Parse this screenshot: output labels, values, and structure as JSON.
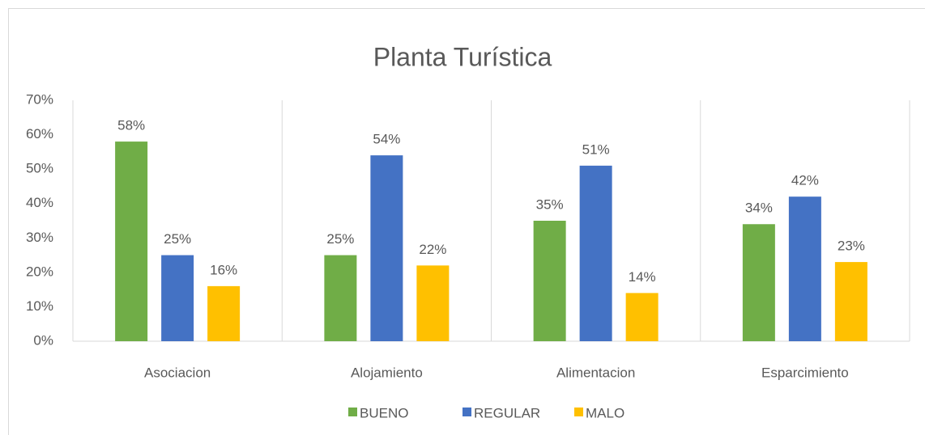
{
  "chart_data": {
    "type": "bar",
    "title": "Planta Turística",
    "categories": [
      "Asociacion",
      "Alojamiento",
      "Alimentacion",
      "Esparcimiento"
    ],
    "series": [
      {
        "name": "BUENO",
        "color": "#70ad47",
        "values": [
          58,
          25,
          35,
          34
        ],
        "value_labels": [
          "58%",
          "25%",
          "35%",
          "34%"
        ]
      },
      {
        "name": "REGULAR",
        "color": "#4472c4",
        "values": [
          25,
          54,
          51,
          42
        ],
        "value_labels": [
          "25%",
          "54%",
          "51%",
          "42%"
        ]
      },
      {
        "name": "MALO",
        "color": "#ffc000",
        "values": [
          16,
          22,
          14,
          23
        ],
        "value_labels": [
          "16%",
          "22%",
          "14%",
          "23%"
        ]
      }
    ],
    "ylim": [
      0,
      70
    ],
    "yticks": [
      {
        "value": 0,
        "label": "0%"
      },
      {
        "value": 10,
        "label": "10%"
      },
      {
        "value": 20,
        "label": "20%"
      },
      {
        "value": 30,
        "label": "30%"
      },
      {
        "value": 40,
        "label": "40%"
      },
      {
        "value": 50,
        "label": "50%"
      },
      {
        "value": 60,
        "label": "60%"
      },
      {
        "value": 70,
        "label": "70%"
      }
    ],
    "legend": "bottom"
  }
}
